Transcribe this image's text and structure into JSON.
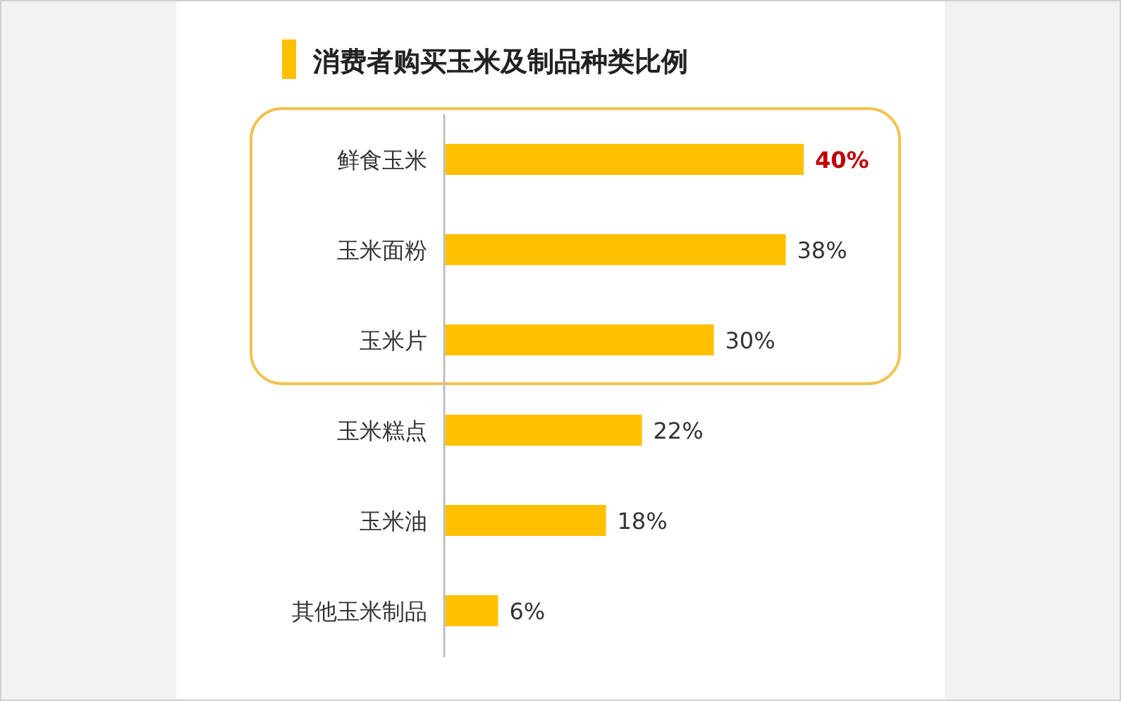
{
  "chart_data": {
    "type": "bar",
    "orientation": "horizontal",
    "title": "消费者购买玉米及制品种类比例",
    "categories": [
      "鲜食玉米",
      "玉米面粉",
      "玉米片",
      "玉米糕点",
      "玉米油",
      "其他玉米制品"
    ],
    "values": [
      40,
      38,
      30,
      22,
      18,
      6
    ],
    "value_labels": [
      "40%",
      "38%",
      "30%",
      "22%",
      "18%",
      "6%"
    ],
    "color": "#ffc000"
  }
}
